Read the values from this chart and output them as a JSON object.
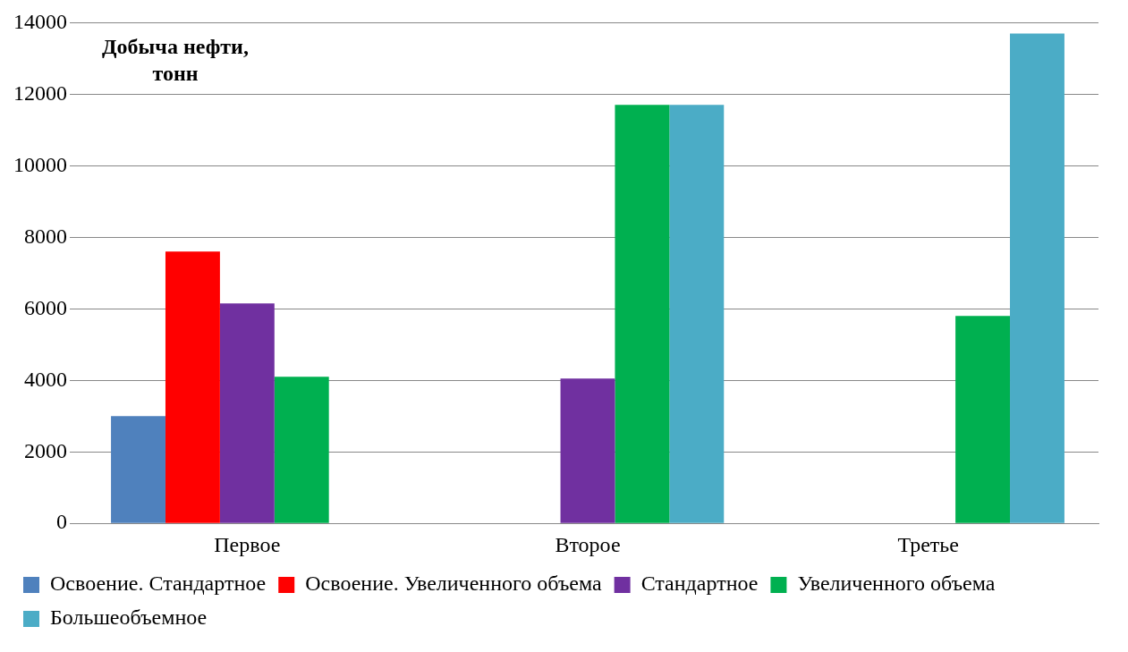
{
  "chart_data": {
    "type": "bar",
    "ylabel": "Добыча нефти, тонн",
    "categories": [
      "Первое",
      "Второе",
      "Третье"
    ],
    "series": [
      {
        "name": "Освоение. Стандартное",
        "color": "#4f81bd",
        "values": [
          3000,
          null,
          null
        ]
      },
      {
        "name": "Освоение. Увеличенного объема",
        "color": "#ff0000",
        "values": [
          7600,
          null,
          null
        ]
      },
      {
        "name": "Стандартное",
        "color": "#7030a0",
        "values": [
          6150,
          4050,
          null
        ]
      },
      {
        "name": "Увеличенного объема",
        "color": "#00b050",
        "values": [
          4100,
          11700,
          5800
        ]
      },
      {
        "name": "Большеобъемное",
        "color": "#4bacc6",
        "values": [
          null,
          11700,
          13700
        ]
      }
    ],
    "ylim": [
      0,
      14000
    ],
    "yticks": [
      0,
      2000,
      4000,
      6000,
      8000,
      10000,
      12000,
      14000
    ],
    "grid": "y",
    "legend": "bottom"
  }
}
